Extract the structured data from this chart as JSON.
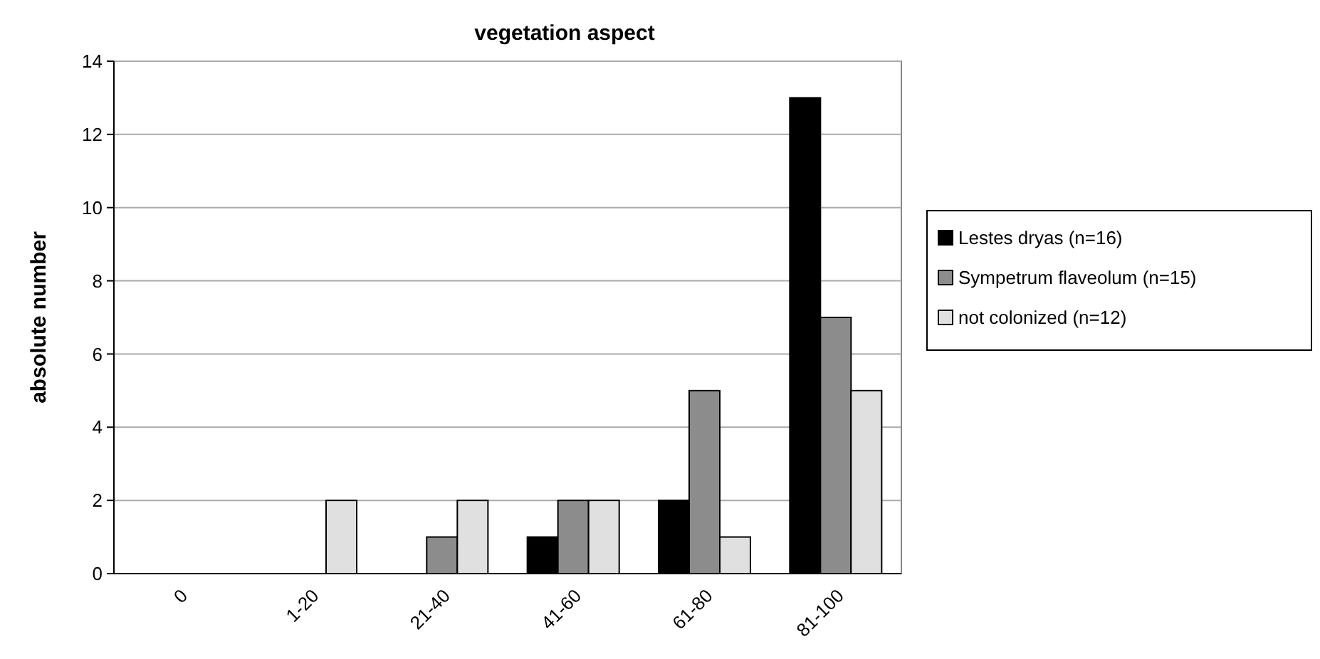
{
  "chart_data": {
    "type": "bar",
    "title": "vegetation aspect",
    "ylabel": "absolute number",
    "categories": [
      "0",
      "1-20",
      "21-40",
      "41-60",
      "61-80",
      "81-100"
    ],
    "series": [
      {
        "name": "Lestes dryas (n=16)",
        "color": "#000000",
        "values": [
          0,
          0,
          0,
          1,
          2,
          13
        ]
      },
      {
        "name": "Sympetrum flaveolum (n=15)",
        "color": "#8c8c8c",
        "values": [
          0,
          0,
          1,
          2,
          5,
          7
        ]
      },
      {
        "name": "not colonized (n=12)",
        "color": "#e0e0e0",
        "values": [
          0,
          2,
          2,
          2,
          1,
          5
        ]
      }
    ],
    "ylim": [
      0,
      14
    ],
    "yticks": [
      0,
      2,
      4,
      6,
      8,
      10,
      12,
      14
    ],
    "grid": "y",
    "legend": "right"
  }
}
